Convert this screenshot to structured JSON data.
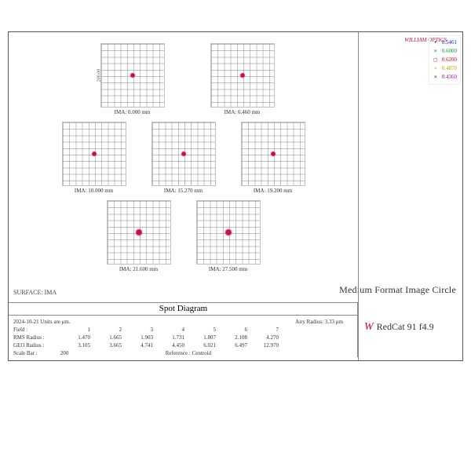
{
  "brand_top": "WILLIAM OPTICS",
  "legend": [
    {
      "sym": "•",
      "val": "0.5461",
      "color": "#1020d0"
    },
    {
      "sym": "×",
      "val": "0.6000",
      "color": "#10a030"
    },
    {
      "sym": "□",
      "val": "0.6200",
      "color": "#d01020"
    },
    {
      "sym": "∘",
      "val": "0.4870",
      "color": "#c4a400"
    },
    {
      "sym": "×",
      "val": "0.4360",
      "color": "#a010a0"
    }
  ],
  "ylabel": "200.00",
  "surface": "SURFACE: IMA",
  "mfic": "Medium Format Image Circle",
  "sd_title": "Spot Diagram",
  "spots": [
    {
      "xlab": "IMA: 0.000 mm",
      "ylab": true,
      "size": "sm"
    },
    {
      "xlab": "IMA: 6.460 mm",
      "size": "sm"
    },
    {
      "xlab": "IMA: 10.000 mm",
      "size": "sm"
    },
    {
      "xlab": "IMA: 15.270 mm",
      "size": "sm"
    },
    {
      "xlab": "IMA: 19.200 mm",
      "size": "sm"
    },
    {
      "xlab": "IMA: 21.600 mm",
      "size": "lg"
    },
    {
      "xlab": "IMA: 27.500 mm",
      "size": "lg"
    }
  ],
  "meta": {
    "date_units": "2024-10-21  Units are μm.",
    "airy": "Airy Radius: 3.33 μm",
    "fields": [
      "1",
      "2",
      "3",
      "4",
      "5",
      "6",
      "7"
    ],
    "rms": [
      "1.470",
      "1.665",
      "1.903",
      "1.731",
      "1.807",
      "2.108",
      "4.270"
    ],
    "geo": [
      "3.105",
      "3.665",
      "4.741",
      "4.450",
      "6.021",
      "6.497",
      "12.970"
    ],
    "scalebar": "200",
    "reference": "Reference  : Centroid"
  },
  "brand": {
    "logo": "W",
    "name": "RedCat 91  f4.9"
  }
}
